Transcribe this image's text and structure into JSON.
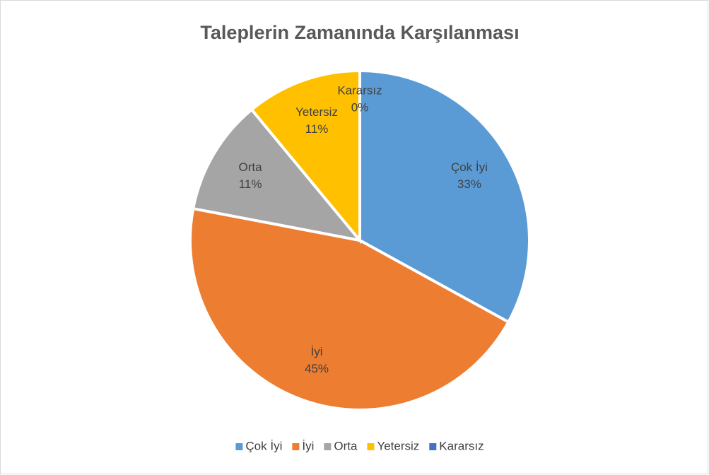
{
  "chart_data": {
    "type": "pie",
    "title": "Taleplerin Zamanında Karşılanması",
    "categories": [
      "Çok İyi",
      "İyi",
      "Orta",
      "Yetersiz",
      "Kararsız"
    ],
    "values": [
      33,
      45,
      11,
      11,
      0
    ],
    "value_labels": [
      "33%",
      "45%",
      "11%",
      "11%",
      "0%"
    ],
    "colors": [
      "#5b9bd5",
      "#ed7d31",
      "#a5a5a5",
      "#ffc000",
      "#4472c4"
    ],
    "legend": "bottom"
  }
}
